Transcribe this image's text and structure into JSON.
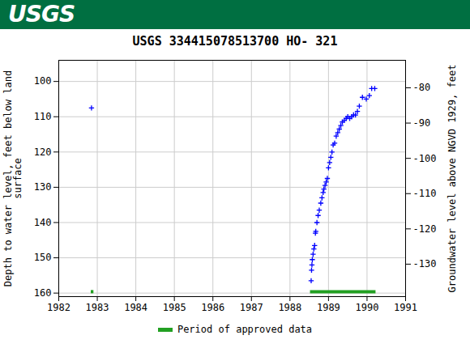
{
  "header": "USGS",
  "chart_data": {
    "type": "scatter",
    "title": "USGS 334415078513700 HO- 321",
    "ylabel": "Depth to water level, feet below land\nsurface",
    "y2label": "Groundwater level above NGVD 1929, feet",
    "xlim": [
      1982,
      1991
    ],
    "xticks": [
      1982,
      1983,
      1984,
      1985,
      1986,
      1987,
      1988,
      1989,
      1990,
      1991
    ],
    "ylim": [
      161,
      94
    ],
    "yticks": [
      100,
      110,
      120,
      130,
      140,
      150,
      160
    ],
    "y2lim": [
      -139.2,
      -72.2
    ],
    "y2ticks": [
      -80,
      -90,
      -100,
      -110,
      -120,
      -130
    ],
    "grid": true,
    "color": "#0000ff",
    "marker": "plus",
    "x": [
      1982.85,
      1988.55,
      1988.56,
      1988.57,
      1988.58,
      1988.6,
      1988.62,
      1988.64,
      1988.66,
      1988.67,
      1988.7,
      1988.73,
      1988.76,
      1988.8,
      1988.83,
      1988.86,
      1988.88,
      1988.91,
      1988.94,
      1988.97,
      1989.0,
      1989.03,
      1989.06,
      1989.09,
      1989.12,
      1989.16,
      1989.2,
      1989.24,
      1989.28,
      1989.32,
      1989.36,
      1989.41,
      1989.46,
      1989.5,
      1989.55,
      1989.6,
      1989.65,
      1989.7,
      1989.75,
      1989.8,
      1989.88,
      1989.98,
      1990.06,
      1990.12,
      1990.2
    ],
    "values": [
      107.5,
      156.5,
      153.5,
      152,
      150.5,
      149,
      147.5,
      146.5,
      143,
      142.5,
      140,
      138,
      136.5,
      134.5,
      133,
      131.5,
      130.5,
      129.5,
      128.5,
      127.5,
      124.5,
      123,
      121.5,
      120,
      118,
      117.5,
      115.5,
      114.5,
      113.5,
      112.5,
      111.5,
      111,
      110.5,
      110,
      110.5,
      110,
      109.5,
      109.5,
      108.5,
      107,
      104.5,
      105,
      104,
      102,
      102
    ],
    "approved_periods": {
      "name": "Period of approved data",
      "color": "#22a022",
      "level": 159.6,
      "ranges": [
        [
          1982.83,
          1982.9
        ],
        [
          1988.52,
          1990.22
        ]
      ]
    }
  }
}
